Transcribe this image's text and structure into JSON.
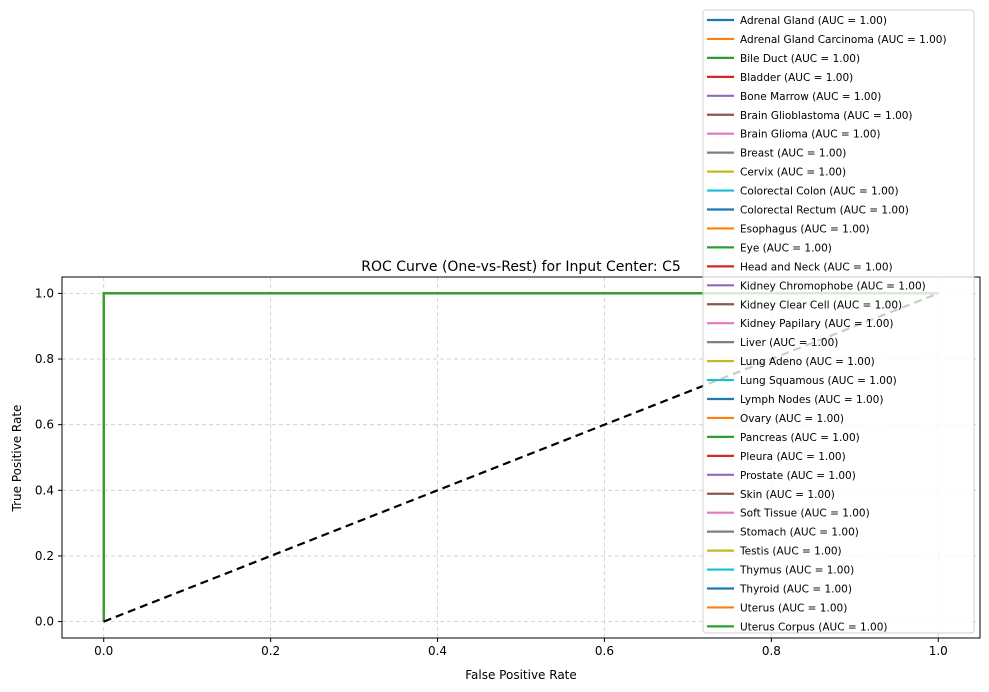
{
  "chart_data": {
    "type": "line",
    "title": "ROC Curve (One-vs-Rest) for Input Center: C5",
    "xlabel": "False Positive Rate",
    "ylabel": "True Positive Rate",
    "xlim": [
      -0.05,
      1.05
    ],
    "ylim": [
      -0.05,
      1.05
    ],
    "xticks": [
      "0.0",
      "0.2",
      "0.4",
      "0.6",
      "0.8",
      "1.0"
    ],
    "yticks": [
      "0.0",
      "0.2",
      "0.4",
      "0.6",
      "0.8",
      "1.0"
    ],
    "grid": true,
    "legend_position": "upper-right",
    "chance_line": {
      "x": [
        0,
        1
      ],
      "y": [
        0,
        1
      ],
      "color": "#000000",
      "style": "dashed"
    },
    "series": [
      {
        "name": "Adrenal Gland (AUC = 1.00)",
        "color": "#1f77b4",
        "x": [
          0,
          0,
          1
        ],
        "y": [
          0,
          1,
          1
        ]
      },
      {
        "name": "Adrenal Gland Carcinoma (AUC = 1.00)",
        "color": "#ff7f0e",
        "x": [
          0,
          0,
          1
        ],
        "y": [
          0,
          1,
          1
        ]
      },
      {
        "name": "Bile Duct (AUC = 1.00)",
        "color": "#2ca02c",
        "x": [
          0,
          0,
          1
        ],
        "y": [
          0,
          1,
          1
        ]
      },
      {
        "name": "Bladder (AUC = 1.00)",
        "color": "#d62728",
        "x": [
          0,
          0,
          1
        ],
        "y": [
          0,
          1,
          1
        ]
      },
      {
        "name": "Bone Marrow (AUC = 1.00)",
        "color": "#9467bd",
        "x": [
          0,
          0,
          1
        ],
        "y": [
          0,
          1,
          1
        ]
      },
      {
        "name": "Brain Glioblastoma (AUC = 1.00)",
        "color": "#8c564b",
        "x": [
          0,
          0,
          1
        ],
        "y": [
          0,
          1,
          1
        ]
      },
      {
        "name": "Brain Glioma (AUC = 1.00)",
        "color": "#e377c2",
        "x": [
          0,
          0,
          1
        ],
        "y": [
          0,
          1,
          1
        ]
      },
      {
        "name": "Breast (AUC = 1.00)",
        "color": "#7f7f7f",
        "x": [
          0,
          0,
          1
        ],
        "y": [
          0,
          1,
          1
        ]
      },
      {
        "name": "Cervix (AUC = 1.00)",
        "color": "#bcbd22",
        "x": [
          0,
          0,
          1
        ],
        "y": [
          0,
          1,
          1
        ]
      },
      {
        "name": "Colorectal Colon (AUC = 1.00)",
        "color": "#17becf",
        "x": [
          0,
          0,
          1
        ],
        "y": [
          0,
          1,
          1
        ]
      },
      {
        "name": "Colorectal Rectum (AUC = 1.00)",
        "color": "#1f77b4",
        "x": [
          0,
          0,
          1
        ],
        "y": [
          0,
          1,
          1
        ]
      },
      {
        "name": "Esophagus (AUC = 1.00)",
        "color": "#ff7f0e",
        "x": [
          0,
          0,
          1
        ],
        "y": [
          0,
          1,
          1
        ]
      },
      {
        "name": "Eye (AUC = 1.00)",
        "color": "#2ca02c",
        "x": [
          0,
          0,
          1
        ],
        "y": [
          0,
          1,
          1
        ]
      },
      {
        "name": "Head and Neck (AUC = 1.00)",
        "color": "#d62728",
        "x": [
          0,
          0,
          1
        ],
        "y": [
          0,
          1,
          1
        ]
      },
      {
        "name": "Kidney Chromophobe (AUC = 1.00)",
        "color": "#9467bd",
        "x": [
          0,
          0,
          1
        ],
        "y": [
          0,
          1,
          1
        ]
      },
      {
        "name": "Kidney Clear Cell (AUC = 1.00)",
        "color": "#8c564b",
        "x": [
          0,
          0,
          1
        ],
        "y": [
          0,
          1,
          1
        ]
      },
      {
        "name": "Kidney Papilary (AUC = 1.00)",
        "color": "#e377c2",
        "x": [
          0,
          0,
          1
        ],
        "y": [
          0,
          1,
          1
        ]
      },
      {
        "name": "Liver (AUC = 1.00)",
        "color": "#7f7f7f",
        "x": [
          0,
          0,
          1
        ],
        "y": [
          0,
          1,
          1
        ]
      },
      {
        "name": "Lung Adeno (AUC = 1.00)",
        "color": "#bcbd22",
        "x": [
          0,
          0,
          1
        ],
        "y": [
          0,
          1,
          1
        ]
      },
      {
        "name": "Lung Squamous (AUC = 1.00)",
        "color": "#17becf",
        "x": [
          0,
          0,
          1
        ],
        "y": [
          0,
          1,
          1
        ]
      },
      {
        "name": "Lymph Nodes (AUC = 1.00)",
        "color": "#1f77b4",
        "x": [
          0,
          0,
          1
        ],
        "y": [
          0,
          1,
          1
        ]
      },
      {
        "name": "Ovary (AUC = 1.00)",
        "color": "#ff7f0e",
        "x": [
          0,
          0,
          1
        ],
        "y": [
          0,
          1,
          1
        ]
      },
      {
        "name": "Pancreas (AUC = 1.00)",
        "color": "#2ca02c",
        "x": [
          0,
          0,
          1
        ],
        "y": [
          0,
          1,
          1
        ]
      },
      {
        "name": "Pleura (AUC = 1.00)",
        "color": "#d62728",
        "x": [
          0,
          0,
          1
        ],
        "y": [
          0,
          1,
          1
        ]
      },
      {
        "name": "Prostate (AUC = 1.00)",
        "color": "#9467bd",
        "x": [
          0,
          0,
          1
        ],
        "y": [
          0,
          1,
          1
        ]
      },
      {
        "name": "Skin (AUC = 1.00)",
        "color": "#8c564b",
        "x": [
          0,
          0,
          1
        ],
        "y": [
          0,
          1,
          1
        ]
      },
      {
        "name": "Soft Tissue (AUC = 1.00)",
        "color": "#e377c2",
        "x": [
          0,
          0,
          1
        ],
        "y": [
          0,
          1,
          1
        ]
      },
      {
        "name": "Stomach (AUC = 1.00)",
        "color": "#7f7f7f",
        "x": [
          0,
          0,
          1
        ],
        "y": [
          0,
          1,
          1
        ]
      },
      {
        "name": "Testis (AUC = 1.00)",
        "color": "#bcbd22",
        "x": [
          0,
          0,
          1
        ],
        "y": [
          0,
          1,
          1
        ]
      },
      {
        "name": "Thymus (AUC = 1.00)",
        "color": "#17becf",
        "x": [
          0,
          0,
          1
        ],
        "y": [
          0,
          1,
          1
        ]
      },
      {
        "name": "Thyroid (AUC = 1.00)",
        "color": "#1f77b4",
        "x": [
          0,
          0,
          1
        ],
        "y": [
          0,
          1,
          1
        ]
      },
      {
        "name": "Uterus (AUC = 1.00)",
        "color": "#ff7f0e",
        "x": [
          0,
          0,
          1
        ],
        "y": [
          0,
          1,
          1
        ]
      },
      {
        "name": "Uterus Corpus (AUC = 1.00)",
        "color": "#2ca02c",
        "x": [
          0,
          0,
          1
        ],
        "y": [
          0,
          1,
          1
        ]
      }
    ]
  }
}
